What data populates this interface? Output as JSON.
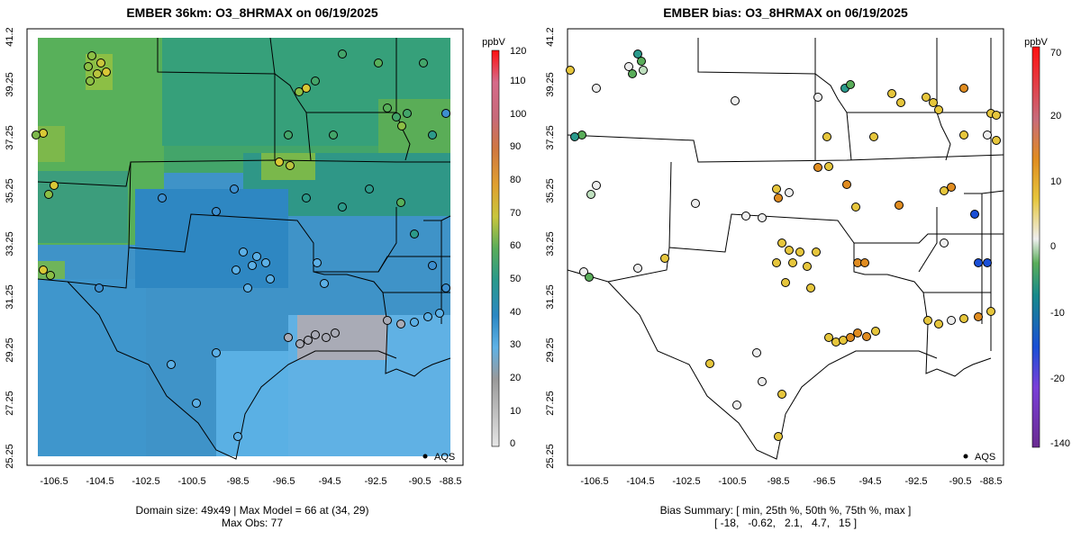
{
  "left_panel": {
    "title": "EMBER 36km: O3_8HRMAX on 06/19/2025",
    "colorbar_unit": "ppbV",
    "colorbar_ticks": [
      "0",
      "10",
      "20",
      "30",
      "40",
      "50",
      "60",
      "70",
      "80",
      "90",
      "100",
      "110",
      "120"
    ],
    "legend_label": "AQS",
    "caption_line1": "Domain size: 49x49 | Max Model = 66 at (34, 29)",
    "caption_line2": "Max Obs: 77"
  },
  "right_panel": {
    "title": "EMBER bias: O3_8HRMAX on 06/19/2025",
    "colorbar_unit": "ppbV",
    "colorbar_ticks": [
      "-140",
      "-20",
      "-10",
      "0",
      "10",
      "20",
      "70"
    ],
    "legend_label": "AQS",
    "caption_line1": "Bias Summary: [ min, 25th %, 50th %, 75th %, max ]",
    "caption_line2": "[ -18,   -0.62,   2.1,   4.7,   15 ]"
  },
  "x_ticks": [
    "-106.5",
    "-104.5",
    "-102.5",
    "-100.5",
    "-98.5",
    "-96.5",
    "-94.5",
    "-92.5",
    "-90.5",
    "-88.5"
  ],
  "y_ticks": [
    "25.25",
    "27.25",
    "29.25",
    "31.25",
    "33.25",
    "35.25",
    "37.25",
    "39.25",
    "41.25"
  ],
  "colors": {
    "model_high": "#7fbf4a",
    "model_mid": "#2c9a8a",
    "model_low": "#3d8fcf",
    "model_gulf": "#5cb0e6",
    "bias_positive": "#e0a030",
    "bias_zero": "#e8e8e8",
    "bias_negative": "#1a4fd6"
  }
}
